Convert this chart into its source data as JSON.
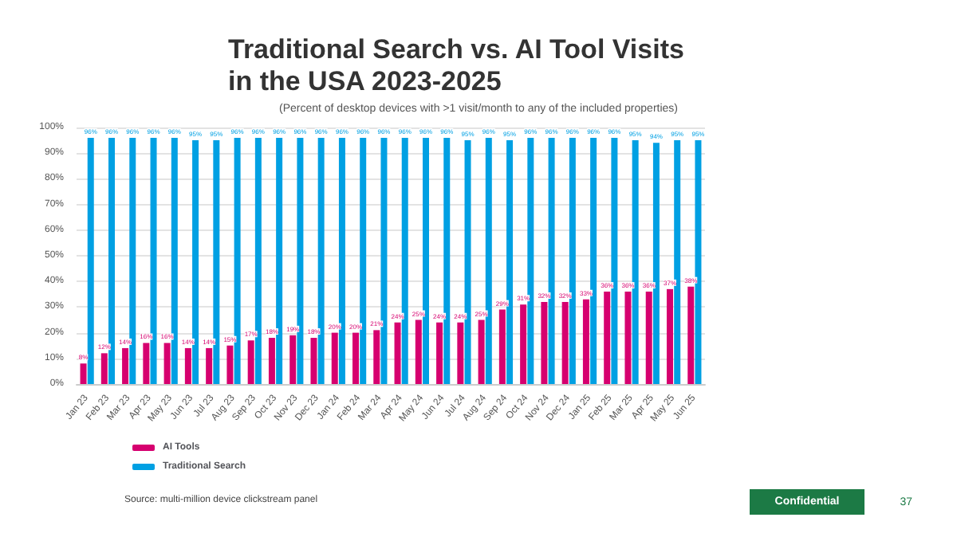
{
  "chart_data": {
    "type": "bar",
    "title": "Traditional Search vs. AI Tool Visits in the USA 2023-2025",
    "subtitle": "(Percent of desktop devices with >1 visit/month to any of the included properties)",
    "categories": [
      "Jan 23",
      "Feb 23",
      "Mar 23",
      "Apr 23",
      "May 23",
      "Jun 23",
      "Jul 23",
      "Aug 23",
      "Sep 23",
      "Oct 23",
      "Nov 23",
      "Dec 23",
      "Jan 24",
      "Feb 24",
      "Mar 24",
      "Apr 24",
      "May 24",
      "Jun 24",
      "Jul 24",
      "Aug 24",
      "Sep 24",
      "Oct 24",
      "Nov 24",
      "Dec 24",
      "Jan 25",
      "Feb 25",
      "Mar 25",
      "Apr 25",
      "May 25",
      "Jun 25"
    ],
    "series": [
      {
        "name": "AI Tools",
        "color": "#d6006f",
        "values": [
          8,
          12,
          14,
          16,
          16,
          14,
          14,
          15,
          17,
          18,
          19,
          18,
          20,
          20,
          21,
          24,
          25,
          24,
          24,
          25,
          29,
          31,
          32,
          32,
          33,
          36,
          36,
          36,
          37,
          38
        ],
        "value_labels": [
          "8%",
          "12%",
          "14%",
          "16%",
          "16%",
          "14%",
          "14%",
          "15%",
          "17%",
          "18%",
          "19%",
          "18%",
          "20%",
          "20%",
          "21%",
          "24%",
          "25%",
          "24%",
          "24%",
          "25%",
          "29%",
          "31%",
          "32%",
          "32%",
          "33%",
          "36%",
          "36%",
          "36%",
          "37%",
          "38%"
        ]
      },
      {
        "name": "Traditional Search",
        "color": "#00a0e3",
        "values": [
          96,
          96,
          96,
          96,
          96,
          95,
          95,
          96,
          96,
          96,
          96,
          96,
          96,
          96,
          96,
          96,
          96,
          96,
          95,
          96,
          95,
          96,
          96,
          96,
          96,
          96,
          95,
          94,
          95,
          95
        ],
        "value_labels": [
          "96%",
          "96%",
          "96%",
          "96%",
          "96%",
          "95%",
          "95%",
          "96%",
          "96%",
          "96%",
          "96%",
          "96%",
          "96%",
          "96%",
          "96%",
          "96%",
          "96%",
          "96%",
          "95%",
          "96%",
          "95%",
          "96%",
          "96%",
          "96%",
          "96%",
          "96%",
          "95%",
          "94%",
          "95%",
          "95%"
        ]
      }
    ],
    "ylim": [
      0,
      100
    ],
    "yticks": [
      {
        "value": 0,
        "label": "0%"
      },
      {
        "value": 10,
        "label": "10%"
      },
      {
        "value": 20,
        "label": "20%"
      },
      {
        "value": 30,
        "label": "30%"
      },
      {
        "value": 40,
        "label": "40%"
      },
      {
        "value": 50,
        "label": "50%"
      },
      {
        "value": 60,
        "label": "60%"
      },
      {
        "value": 70,
        "label": "70%"
      },
      {
        "value": 80,
        "label": "80%"
      },
      {
        "value": 90,
        "label": "90%"
      },
      {
        "value": 100,
        "label": "100%"
      }
    ],
    "grid": "y",
    "legend": "bottom left",
    "annotations": [
      "Source: multi-million device clickstream panel",
      "Confidential",
      "37"
    ]
  }
}
